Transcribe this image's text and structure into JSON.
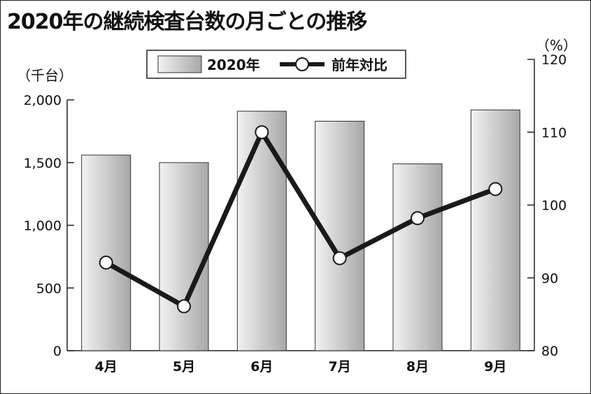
{
  "title": "2020年の継続検査台数の月ごとの推移",
  "chart_data": {
    "type": "bar",
    "categories": [
      "4月",
      "5月",
      "6月",
      "7月",
      "8月",
      "9月"
    ],
    "series": [
      {
        "name": "2020年",
        "type": "bar",
        "axis": "left",
        "values": [
          1560,
          1500,
          1910,
          1830,
          1490,
          1920
        ]
      },
      {
        "name": "前年対比",
        "type": "line",
        "axis": "right",
        "values": [
          92.1,
          86.1,
          110.0,
          92.7,
          98.2,
          102.2
        ]
      }
    ],
    "y_left": {
      "label": "（千台）",
      "min": 0,
      "max": 2000,
      "ticks": [
        0,
        500,
        1000,
        1500,
        2000
      ],
      "tick_labels": [
        "0",
        "500",
        "1,000",
        "1,500",
        "2,000"
      ]
    },
    "y_right": {
      "label": "（%）",
      "min": 80,
      "max": 120,
      "ticks": [
        80,
        90,
        100,
        110,
        120
      ],
      "tick_labels": [
        "80",
        "90",
        "100",
        "110",
        "120"
      ]
    },
    "legend": {
      "placement": "top-center",
      "entries": [
        "2020年",
        "前年対比"
      ]
    },
    "grid": false,
    "colors": {
      "bar_light": "#f2f2f2",
      "bar_dark": "#a8a8a8",
      "line": "#1a1a1a",
      "marker_fill": "#ffffff"
    }
  }
}
